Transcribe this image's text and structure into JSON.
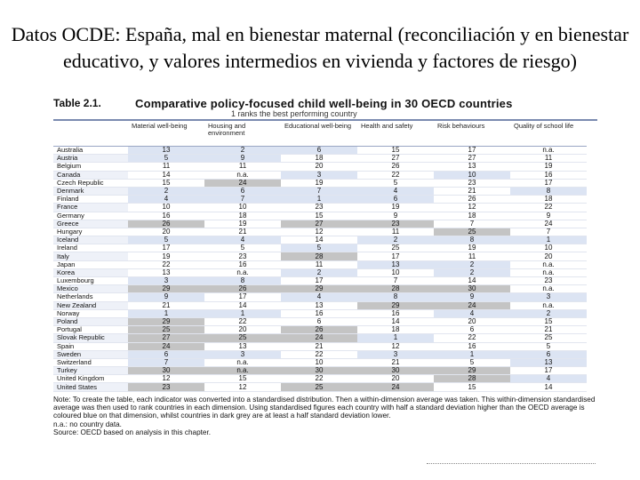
{
  "slide": {
    "title": "Datos OCDE: España, mal en bienestar maternal (reconciliación y en bienestar educativo, y valores intermedios en vivienda y factores de riesgo)"
  },
  "table": {
    "number": "Table 2.1.",
    "title": "Comparative policy-focused child well-being in 30 OECD countries",
    "subtitle": "1 ranks the best performing country",
    "columns": [
      "",
      "Material well-being",
      "Housing and environment",
      "Educational well-being",
      "Health and safety",
      "Risk behaviours",
      "Quality of school life"
    ],
    "rows": [
      [
        "Australia",
        "13",
        "2",
        "6",
        "15",
        "17",
        "n.a."
      ],
      [
        "Austria",
        "5",
        "9",
        "18",
        "27",
        "27",
        "11"
      ],
      [
        "Belgium",
        "11",
        "11",
        "20",
        "26",
        "13",
        "19"
      ],
      [
        "Canada",
        "14",
        "n.a.",
        "3",
        "22",
        "10",
        "16"
      ],
      [
        "Czech Republic",
        "15",
        "24",
        "19",
        "5",
        "23",
        "17"
      ],
      [
        "Denmark",
        "2",
        "6",
        "7",
        "4",
        "21",
        "8"
      ],
      [
        "Finland",
        "4",
        "7",
        "1",
        "6",
        "26",
        "18"
      ],
      [
        "France",
        "10",
        "10",
        "23",
        "19",
        "12",
        "22"
      ],
      [
        "Germany",
        "16",
        "18",
        "15",
        "9",
        "18",
        "9"
      ],
      [
        "Greece",
        "26",
        "19",
        "27",
        "23",
        "7",
        "24"
      ],
      [
        "Hungary",
        "20",
        "21",
        "12",
        "11",
        "25",
        "7"
      ],
      [
        "Iceland",
        "5",
        "4",
        "14",
        "2",
        "8",
        "1"
      ],
      [
        "Ireland",
        "17",
        "5",
        "5",
        "25",
        "19",
        "10"
      ],
      [
        "Italy",
        "19",
        "23",
        "28",
        "17",
        "11",
        "20"
      ],
      [
        "Japan",
        "22",
        "16",
        "11",
        "13",
        "2",
        "n.a."
      ],
      [
        "Korea",
        "13",
        "n.a.",
        "2",
        "10",
        "2",
        "n.a."
      ],
      [
        "Luxembourg",
        "3",
        "8",
        "17",
        "7",
        "14",
        "23"
      ],
      [
        "Mexico",
        "29",
        "26",
        "29",
        "28",
        "30",
        "n.a."
      ],
      [
        "Netherlands",
        "9",
        "17",
        "4",
        "8",
        "9",
        "3"
      ],
      [
        "New Zealand",
        "21",
        "14",
        "13",
        "29",
        "24",
        "n.a."
      ],
      [
        "Norway",
        "1",
        "1",
        "16",
        "16",
        "4",
        "2"
      ],
      [
        "Poland",
        "29",
        "22",
        "6",
        "14",
        "20",
        "15"
      ],
      [
        "Portugal",
        "25",
        "20",
        "26",
        "18",
        "6",
        "21"
      ],
      [
        "Slovak Republic",
        "27",
        "25",
        "24",
        "1",
        "22",
        "25"
      ],
      [
        "Spain",
        "24",
        "13",
        "21",
        "12",
        "16",
        "5"
      ],
      [
        "Sweden",
        "6",
        "3",
        "22",
        "3",
        "1",
        "6"
      ],
      [
        "Switzerland",
        "7",
        "n.a.",
        "10",
        "21",
        "5",
        "13"
      ],
      [
        "Turkey",
        "30",
        "n.a.",
        "30",
        "30",
        "29",
        "17"
      ],
      [
        "United Kingdom",
        "12",
        "15",
        "22",
        "20",
        "28",
        "4"
      ],
      [
        "United States",
        "23",
        "12",
        "25",
        "24",
        "15",
        "14"
      ]
    ],
    "notes": [
      "Note: To create the table, each indicator was converted into a standardised distribution. Then a within-dimension average was taken. This within-dimension standardised average was then used to rank countries in each dimension. Using standardised figures each country with half a standard deviation higher than the OECD average is coloured blue on that dimension, whilst countries in dark grey are at least a half standard deviation lower.",
      "n.a.: no country data.",
      "Source: OECD based on analysis in this chapter."
    ]
  },
  "colors": {
    "above_average": "#dce4f3",
    "below_average": "#c4c4c4",
    "rule": "#7a8ab0"
  }
}
